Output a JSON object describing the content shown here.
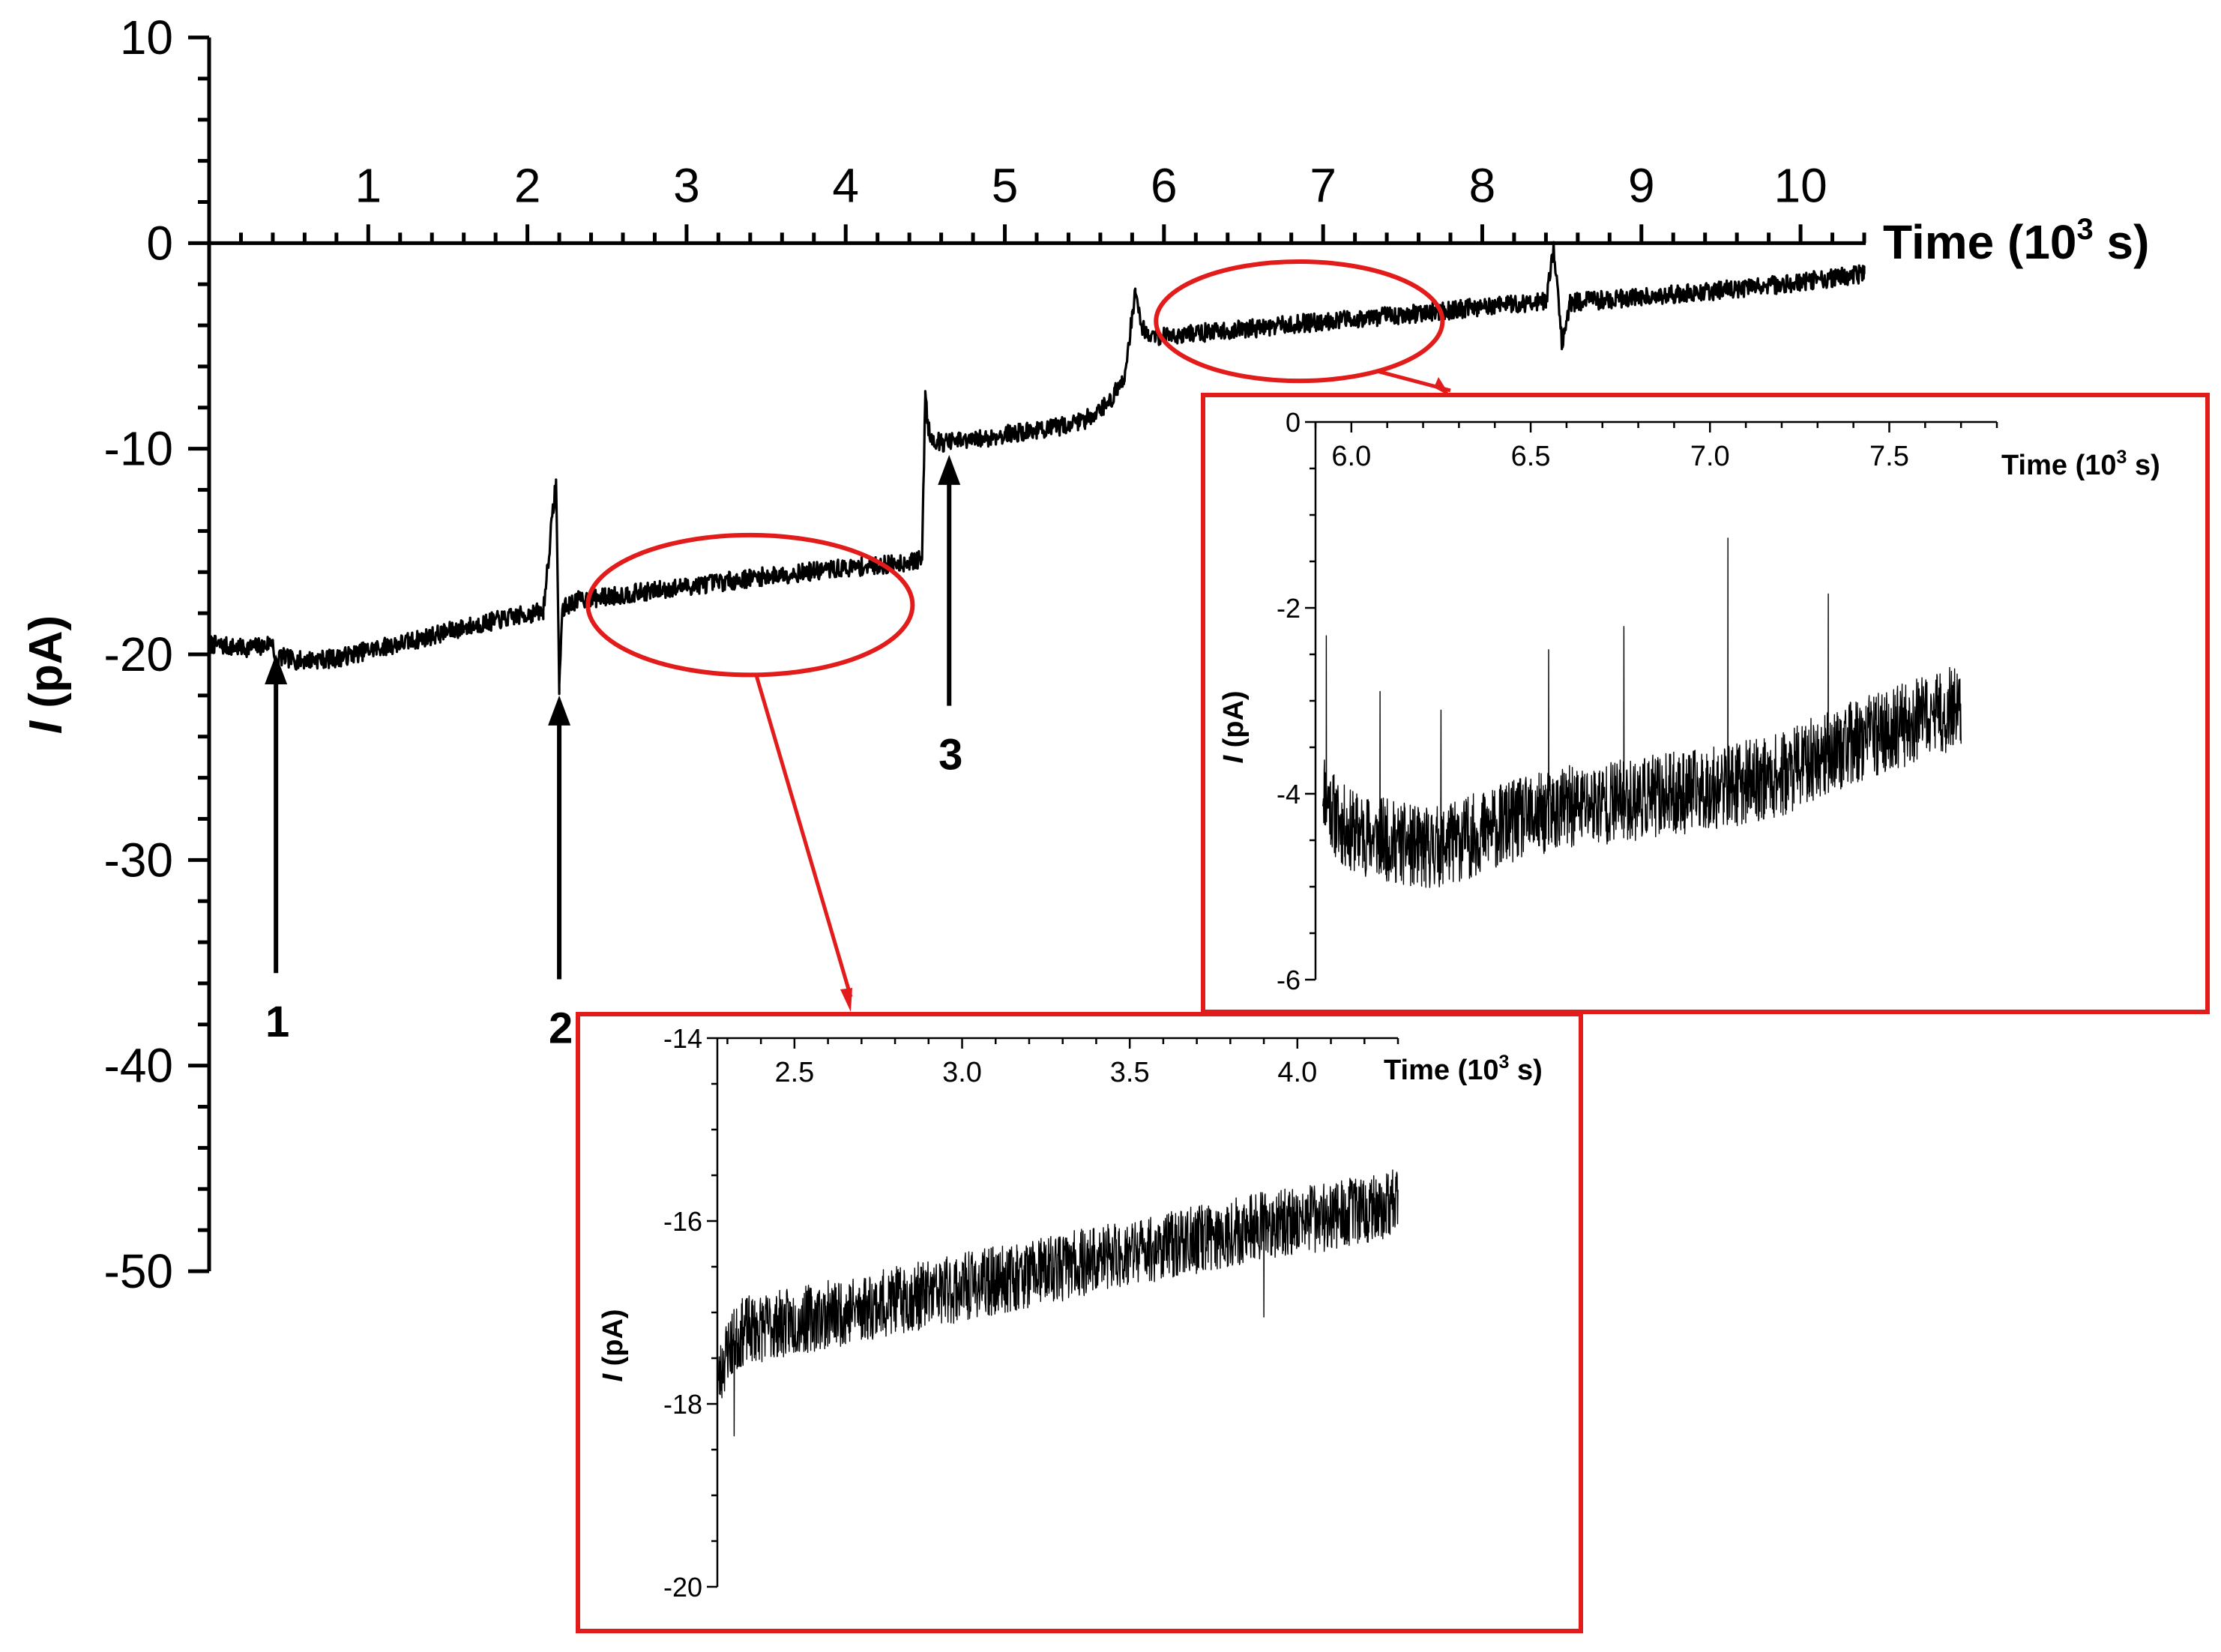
{
  "colors": {
    "trace": "#000000",
    "highlight": "#e21b1b",
    "background": "#ffffff"
  },
  "chart_data": [
    {
      "id": "main",
      "type": "line",
      "title": "",
      "xlabel": "Time (10³ s)",
      "xlabel_main": "Time (10",
      "xlabel_exp": "3",
      "xlabel_tail": " s)",
      "ylabel_italic": "I",
      "ylabel_rest": " (pA)",
      "xlim": [
        0,
        10.4
      ],
      "ylim": [
        -50,
        10
      ],
      "xticks": [
        1,
        2,
        3,
        4,
        5,
        6,
        7,
        8,
        9,
        10
      ],
      "yticks": [
        10,
        0,
        -10,
        -20,
        -30,
        -40,
        -50
      ],
      "x_axis_position": "top, at I = 0",
      "grid": false,
      "series": [
        {
          "x": [
            0,
            0.2,
            0.35,
            0.4,
            0.42,
            0.44,
            0.55,
            0.8,
            1.0,
            1.3,
            1.6,
            1.9,
            2.1,
            2.18,
            2.2,
            2.22,
            2.3,
            2.5,
            3.0,
            3.5,
            4.0,
            4.3,
            4.48,
            4.5,
            4.52,
            4.55,
            4.6,
            4.8,
            5.0,
            5.3,
            5.5,
            5.65,
            5.75,
            5.8,
            5.82,
            5.86,
            5.9,
            6.0,
            6.5,
            7.0,
            7.5,
            8.0,
            8.4,
            8.45,
            8.5,
            8.55,
            9.0,
            9.5,
            10.0,
            10.2,
            10.4
          ],
          "y": [
            -19.5,
            -19.7,
            -19.6,
            -19.3,
            -21.2,
            -20.1,
            -20.3,
            -20.2,
            -19.8,
            -19.3,
            -18.7,
            -18.2,
            -17.9,
            -11.5,
            -21.5,
            -17.8,
            -17.4,
            -17.2,
            -16.7,
            -16.2,
            -15.8,
            -15.6,
            -15.4,
            -7.2,
            -9.1,
            -9.5,
            -9.7,
            -9.6,
            -9.3,
            -9.0,
            -8.6,
            -7.8,
            -6.6,
            -3.5,
            -2.4,
            -4.0,
            -4.5,
            -4.5,
            -4.2,
            -3.8,
            -3.5,
            -3.1,
            -2.8,
            -0.3,
            -4.9,
            -2.9,
            -2.6,
            -2.3,
            -1.9,
            -1.7,
            -1.5
          ]
        }
      ],
      "annotations": [
        {
          "label": "1",
          "x": 0.42,
          "y_tip": -20.0,
          "y_tail": -35.5,
          "direction": "up",
          "label_pos": "below"
        },
        {
          "label": "2",
          "x": 2.2,
          "y_tip": -22.0,
          "y_tail": -35.8,
          "direction": "up",
          "label_pos": "below"
        },
        {
          "label": "3",
          "x": 4.65,
          "y_tip": -10.3,
          "y_tail": -22.5,
          "direction": "up",
          "label_pos": "below"
        }
      ],
      "zoom_regions": [
        {
          "target": "inset_late",
          "x_center": 6.85,
          "y_center": -3.8,
          "x_halfwidth": 0.9,
          "y_halfwidth": 2.9
        },
        {
          "target": "inset_mid",
          "x_center": 3.4,
          "y_center": -17.6,
          "x_halfwidth": 1.02,
          "y_halfwidth": 3.4
        }
      ]
    },
    {
      "id": "inset_mid",
      "type": "line",
      "title": "",
      "xlabel_main": "Time (10",
      "xlabel_exp": "3",
      "xlabel_tail": " s)",
      "ylabel_italic": "I",
      "ylabel_rest": " (pA)",
      "xlim": [
        2.27,
        4.3
      ],
      "ylim": [
        -20,
        -14
      ],
      "xticks": [
        2.5,
        3.0,
        3.5,
        4.0
      ],
      "xtick_labels": [
        "2.5",
        "3.0",
        "3.5",
        "4.0"
      ],
      "yticks": [
        -14,
        -16,
        -18,
        -20
      ],
      "grid": false,
      "series": [
        {
          "x": [
            2.27,
            2.3,
            2.35,
            2.5,
            2.7,
            2.9,
            3.1,
            3.3,
            3.5,
            3.7,
            3.9,
            4.1,
            4.3
          ],
          "y": [
            -17.8,
            -17.4,
            -17.2,
            -17.1,
            -16.95,
            -16.8,
            -16.65,
            -16.5,
            -16.35,
            -16.2,
            -16.05,
            -15.95,
            -15.8
          ]
        }
      ]
    },
    {
      "id": "inset_late",
      "type": "line",
      "title": "",
      "xlabel_main": "Time (10",
      "xlabel_exp": "3",
      "xlabel_tail": " s)",
      "ylabel_italic": "I",
      "ylabel_rest": " (pA)",
      "xlim": [
        5.9,
        7.8
      ],
      "ylim": [
        -6,
        0
      ],
      "xticks": [
        6.0,
        6.5,
        7.0,
        7.5
      ],
      "xtick_labels": [
        "6.0",
        "6.5",
        "7.0",
        "7.5"
      ],
      "yticks": [
        0,
        -2,
        -4,
        -6
      ],
      "grid": false,
      "series": [
        {
          "x": [
            5.92,
            5.96,
            6.0,
            6.1,
            6.2,
            6.3,
            6.45,
            6.6,
            6.8,
            7.0,
            7.2,
            7.3,
            7.4,
            7.55,
            7.7
          ],
          "y": [
            -3.9,
            -4.3,
            -4.4,
            -4.5,
            -4.6,
            -4.5,
            -4.3,
            -4.15,
            -4.05,
            -3.95,
            -3.8,
            -3.6,
            -3.45,
            -3.25,
            -3.05
          ]
        }
      ],
      "spikes": [
        {
          "x": 5.93,
          "y": -2.3
        },
        {
          "x": 6.08,
          "y": -2.9
        },
        {
          "x": 6.25,
          "y": -3.1
        },
        {
          "x": 6.55,
          "y": -2.45
        },
        {
          "x": 6.76,
          "y": -2.2
        },
        {
          "x": 7.05,
          "y": -1.25
        },
        {
          "x": 7.33,
          "y": -1.85
        }
      ]
    }
  ]
}
